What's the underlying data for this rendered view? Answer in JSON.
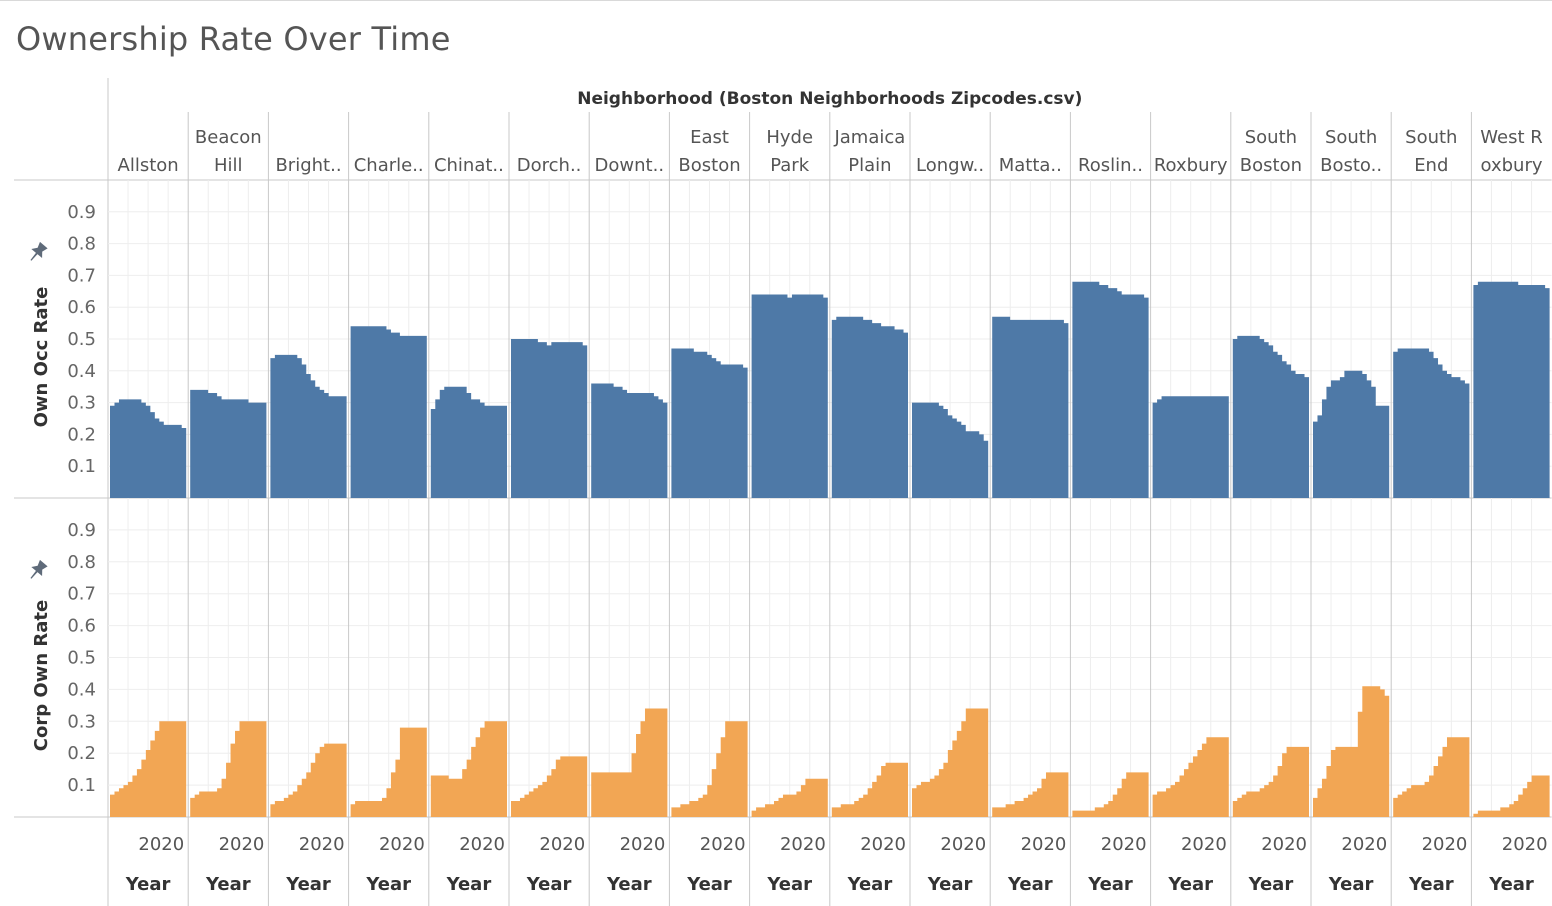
{
  "title": "Ownership Rate Over Time",
  "colors": {
    "own_occ": "#4e79a7",
    "corp_own": "#f2a654",
    "grid": "#eeeeee",
    "divider": "#c8c8c8"
  },
  "icons": {
    "pin": "pin-icon"
  },
  "chart_data": {
    "type": "area",
    "column_header": "Neighborhood (Boston Neighborhoods Zipcodes.csv)",
    "x_axis_title": "Year",
    "x_tick_label": "2020",
    "neighborhoods": [
      {
        "name": [
          "Allston"
        ],
        "own_occ": [
          0.29,
          0.3,
          0.31,
          0.31,
          0.31,
          0.31,
          0.31,
          0.3,
          0.29,
          0.27,
          0.25,
          0.24,
          0.23,
          0.23,
          0.23,
          0.23,
          0.22
        ],
        "corp_own": [
          0.07,
          0.08,
          0.09,
          0.1,
          0.11,
          0.13,
          0.15,
          0.18,
          0.21,
          0.24,
          0.27,
          0.3,
          0.3,
          0.3,
          0.3,
          0.3,
          0.3
        ]
      },
      {
        "name": [
          "Beacon",
          "Hill"
        ],
        "own_occ": [
          0.34,
          0.34,
          0.34,
          0.34,
          0.33,
          0.33,
          0.32,
          0.31,
          0.31,
          0.31,
          0.31,
          0.31,
          0.31,
          0.3,
          0.3,
          0.3,
          0.3
        ],
        "corp_own": [
          0.06,
          0.07,
          0.08,
          0.08,
          0.08,
          0.08,
          0.09,
          0.12,
          0.17,
          0.23,
          0.27,
          0.3,
          0.3,
          0.3,
          0.3,
          0.3,
          0.3
        ]
      },
      {
        "name": [
          "Bright.."
        ],
        "own_occ": [
          0.44,
          0.45,
          0.45,
          0.45,
          0.45,
          0.45,
          0.44,
          0.42,
          0.39,
          0.37,
          0.35,
          0.34,
          0.33,
          0.32,
          0.32,
          0.32,
          0.32
        ],
        "corp_own": [
          0.04,
          0.05,
          0.05,
          0.06,
          0.07,
          0.08,
          0.1,
          0.12,
          0.14,
          0.17,
          0.2,
          0.22,
          0.23,
          0.23,
          0.23,
          0.23,
          0.23
        ]
      },
      {
        "name": [
          "Charle.."
        ],
        "own_occ": [
          0.54,
          0.54,
          0.54,
          0.54,
          0.54,
          0.54,
          0.54,
          0.54,
          0.53,
          0.52,
          0.52,
          0.51,
          0.51,
          0.51,
          0.51,
          0.51,
          0.51
        ],
        "corp_own": [
          0.04,
          0.05,
          0.05,
          0.05,
          0.05,
          0.05,
          0.05,
          0.06,
          0.09,
          0.14,
          0.18,
          0.28,
          0.28,
          0.28,
          0.28,
          0.28,
          0.28
        ]
      },
      {
        "name": [
          "Chinat.."
        ],
        "own_occ": [
          0.28,
          0.31,
          0.34,
          0.35,
          0.35,
          0.35,
          0.35,
          0.35,
          0.33,
          0.31,
          0.31,
          0.3,
          0.29,
          0.29,
          0.29,
          0.29,
          0.29
        ],
        "corp_own": [
          0.13,
          0.13,
          0.13,
          0.13,
          0.12,
          0.12,
          0.12,
          0.15,
          0.18,
          0.22,
          0.25,
          0.28,
          0.3,
          0.3,
          0.3,
          0.3,
          0.3
        ]
      },
      {
        "name": [
          "Dorch.."
        ],
        "own_occ": [
          0.5,
          0.5,
          0.5,
          0.5,
          0.5,
          0.5,
          0.49,
          0.49,
          0.48,
          0.49,
          0.49,
          0.49,
          0.49,
          0.49,
          0.49,
          0.49,
          0.48
        ],
        "corp_own": [
          0.05,
          0.05,
          0.06,
          0.07,
          0.08,
          0.09,
          0.1,
          0.11,
          0.13,
          0.15,
          0.18,
          0.19,
          0.19,
          0.19,
          0.19,
          0.19,
          0.19
        ]
      },
      {
        "name": [
          "Downt.."
        ],
        "own_occ": [
          0.36,
          0.36,
          0.36,
          0.36,
          0.36,
          0.35,
          0.35,
          0.34,
          0.33,
          0.33,
          0.33,
          0.33,
          0.33,
          0.33,
          0.32,
          0.31,
          0.3
        ],
        "corp_own": [
          0.14,
          0.14,
          0.14,
          0.14,
          0.14,
          0.14,
          0.14,
          0.14,
          0.14,
          0.2,
          0.26,
          0.3,
          0.34,
          0.34,
          0.34,
          0.34,
          0.34
        ]
      },
      {
        "name": [
          "East",
          "Boston"
        ],
        "own_occ": [
          0.47,
          0.47,
          0.47,
          0.47,
          0.47,
          0.46,
          0.46,
          0.46,
          0.45,
          0.44,
          0.43,
          0.42,
          0.42,
          0.42,
          0.42,
          0.42,
          0.41
        ],
        "corp_own": [
          0.03,
          0.03,
          0.04,
          0.04,
          0.05,
          0.05,
          0.06,
          0.07,
          0.1,
          0.15,
          0.2,
          0.25,
          0.3,
          0.3,
          0.3,
          0.3,
          0.3
        ]
      },
      {
        "name": [
          "Hyde",
          "Park"
        ],
        "own_occ": [
          0.64,
          0.64,
          0.64,
          0.64,
          0.64,
          0.64,
          0.64,
          0.64,
          0.63,
          0.64,
          0.64,
          0.64,
          0.64,
          0.64,
          0.64,
          0.64,
          0.63
        ],
        "corp_own": [
          0.02,
          0.03,
          0.03,
          0.04,
          0.04,
          0.05,
          0.06,
          0.07,
          0.07,
          0.07,
          0.08,
          0.1,
          0.12,
          0.12,
          0.12,
          0.12,
          0.12
        ]
      },
      {
        "name": [
          "Jamaica",
          "Plain"
        ],
        "own_occ": [
          0.56,
          0.57,
          0.57,
          0.57,
          0.57,
          0.57,
          0.57,
          0.56,
          0.56,
          0.55,
          0.55,
          0.54,
          0.54,
          0.54,
          0.53,
          0.53,
          0.52
        ],
        "corp_own": [
          0.03,
          0.03,
          0.04,
          0.04,
          0.04,
          0.05,
          0.06,
          0.07,
          0.09,
          0.11,
          0.13,
          0.16,
          0.17,
          0.17,
          0.17,
          0.17,
          0.17
        ]
      },
      {
        "name": [
          "Longw.."
        ],
        "own_occ": [
          0.3,
          0.3,
          0.3,
          0.3,
          0.3,
          0.3,
          0.29,
          0.28,
          0.26,
          0.25,
          0.24,
          0.23,
          0.21,
          0.21,
          0.21,
          0.2,
          0.18
        ],
        "corp_own": [
          0.09,
          0.1,
          0.11,
          0.11,
          0.12,
          0.13,
          0.15,
          0.17,
          0.21,
          0.24,
          0.27,
          0.3,
          0.34,
          0.34,
          0.34,
          0.34,
          0.34
        ]
      },
      {
        "name": [
          "Matta.."
        ],
        "own_occ": [
          0.57,
          0.57,
          0.57,
          0.57,
          0.56,
          0.56,
          0.56,
          0.56,
          0.56,
          0.56,
          0.56,
          0.56,
          0.56,
          0.56,
          0.56,
          0.56,
          0.55
        ],
        "corp_own": [
          0.03,
          0.03,
          0.03,
          0.04,
          0.04,
          0.05,
          0.05,
          0.06,
          0.07,
          0.08,
          0.09,
          0.12,
          0.14,
          0.14,
          0.14,
          0.14,
          0.14
        ]
      },
      {
        "name": [
          "Roslin.."
        ],
        "own_occ": [
          0.68,
          0.68,
          0.68,
          0.68,
          0.68,
          0.68,
          0.67,
          0.67,
          0.66,
          0.66,
          0.65,
          0.64,
          0.64,
          0.64,
          0.64,
          0.64,
          0.63
        ],
        "corp_own": [
          0.02,
          0.02,
          0.02,
          0.02,
          0.02,
          0.03,
          0.03,
          0.04,
          0.05,
          0.07,
          0.09,
          0.12,
          0.14,
          0.14,
          0.14,
          0.14,
          0.14
        ]
      },
      {
        "name": [
          "Roxbury"
        ],
        "own_occ": [
          0.3,
          0.31,
          0.32,
          0.32,
          0.32,
          0.32,
          0.32,
          0.32,
          0.32,
          0.32,
          0.32,
          0.32,
          0.32,
          0.32,
          0.32,
          0.32,
          0.32
        ],
        "corp_own": [
          0.07,
          0.08,
          0.08,
          0.09,
          0.1,
          0.11,
          0.13,
          0.15,
          0.17,
          0.19,
          0.21,
          0.23,
          0.25,
          0.25,
          0.25,
          0.25,
          0.25
        ]
      },
      {
        "name": [
          "South",
          "Boston"
        ],
        "own_occ": [
          0.5,
          0.51,
          0.51,
          0.51,
          0.51,
          0.51,
          0.5,
          0.49,
          0.48,
          0.46,
          0.45,
          0.43,
          0.42,
          0.4,
          0.39,
          0.39,
          0.38
        ],
        "corp_own": [
          0.05,
          0.06,
          0.07,
          0.08,
          0.08,
          0.08,
          0.09,
          0.1,
          0.11,
          0.13,
          0.16,
          0.2,
          0.22,
          0.22,
          0.22,
          0.22,
          0.22
        ]
      },
      {
        "name": [
          "South",
          "Bosto.."
        ],
        "own_occ": [
          0.24,
          0.26,
          0.31,
          0.35,
          0.37,
          0.37,
          0.38,
          0.4,
          0.4,
          0.4,
          0.4,
          0.39,
          0.37,
          0.35,
          0.29,
          0.29,
          0.29
        ],
        "corp_own": [
          0.06,
          0.09,
          0.12,
          0.16,
          0.21,
          0.22,
          0.22,
          0.22,
          0.22,
          0.22,
          0.33,
          0.41,
          0.41,
          0.41,
          0.41,
          0.4,
          0.38
        ]
      },
      {
        "name": [
          "South",
          "End"
        ],
        "own_occ": [
          0.46,
          0.47,
          0.47,
          0.47,
          0.47,
          0.47,
          0.47,
          0.47,
          0.46,
          0.44,
          0.42,
          0.4,
          0.39,
          0.38,
          0.38,
          0.37,
          0.36
        ],
        "corp_own": [
          0.06,
          0.07,
          0.08,
          0.09,
          0.1,
          0.1,
          0.1,
          0.11,
          0.13,
          0.16,
          0.19,
          0.22,
          0.25,
          0.25,
          0.25,
          0.25,
          0.25
        ]
      },
      {
        "name": [
          "West R",
          "oxbury"
        ],
        "own_occ": [
          0.67,
          0.68,
          0.68,
          0.68,
          0.68,
          0.68,
          0.68,
          0.68,
          0.68,
          0.68,
          0.67,
          0.67,
          0.67,
          0.67,
          0.67,
          0.67,
          0.66
        ],
        "corp_own": [
          0.01,
          0.02,
          0.02,
          0.02,
          0.02,
          0.02,
          0.03,
          0.03,
          0.04,
          0.05,
          0.07,
          0.09,
          0.11,
          0.13,
          0.13,
          0.13,
          0.13
        ]
      }
    ],
    "panels": [
      {
        "key": "own_occ",
        "ylabel": "Own Occ Rate",
        "color_key": "own_occ"
      },
      {
        "key": "corp_own",
        "ylabel": "Corp Own Rate",
        "color_key": "corp_own"
      }
    ],
    "ylim": [
      0,
      1.0
    ],
    "y_ticks": [
      "0.1",
      "0.2",
      "0.3",
      "0.4",
      "0.5",
      "0.6",
      "0.7",
      "0.8",
      "0.9"
    ],
    "grid": true
  }
}
